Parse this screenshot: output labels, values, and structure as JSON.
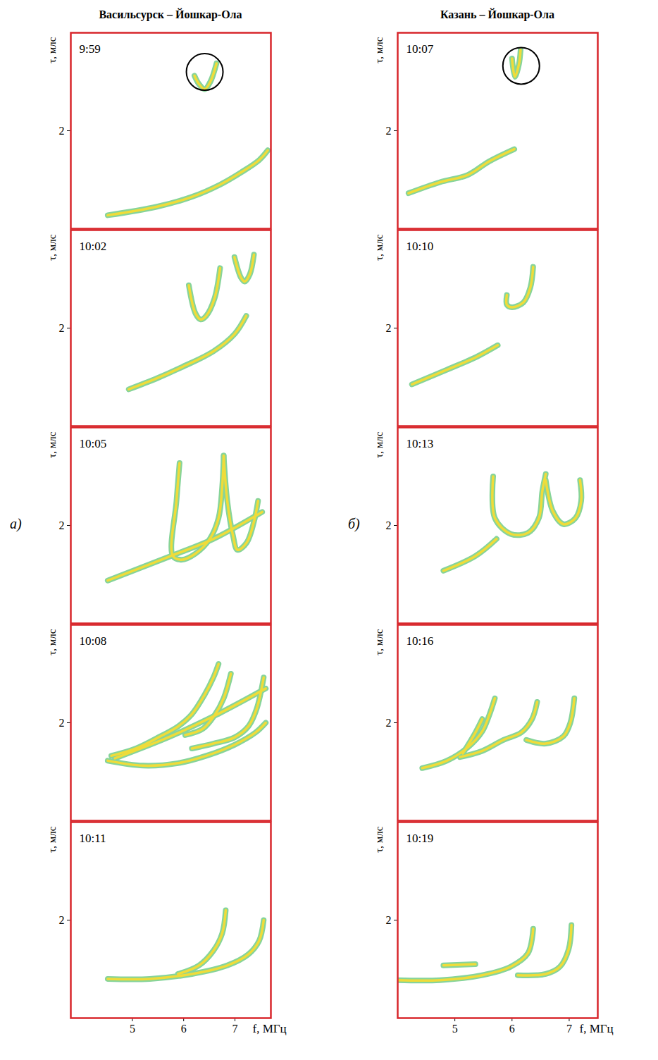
{
  "chart_data": [
    {
      "type": "line",
      "title": "Васильсурск – Йошкар-Ола",
      "panel_label": "а)",
      "xlabel": "f, МГц",
      "ylabel": "τ, млс",
      "xlim": [
        3.8,
        7.7
      ],
      "xticks": [
        5,
        6,
        7
      ],
      "ylim": [
        1.2,
        2.8
      ],
      "yticks": [
        2
      ],
      "color": "#efdc3a",
      "panels": [
        {
          "time": "9:59",
          "traces": [
            {
              "f": [
                4.52,
                5.48,
                6.16,
                6.71,
                7.12,
                7.47,
                7.64
              ],
              "tau": [
                1.31,
                1.38,
                1.46,
                1.56,
                1.66,
                1.76,
                1.84
              ]
            },
            {
              "f": [
                6.21,
                6.3,
                6.41,
                6.52,
                6.64
              ],
              "tau": [
                2.45,
                2.38,
                2.34,
                2.4,
                2.55
              ]
            }
          ],
          "marked": {
            "f": 6.41,
            "tau": 2.48
          }
        },
        {
          "time": "10:02",
          "traces": [
            {
              "f": [
                4.93,
                5.48,
                5.96,
                6.58,
                6.99,
                7.22
              ],
              "tau": [
                1.5,
                1.59,
                1.68,
                1.81,
                1.95,
                2.1
              ]
            },
            {
              "f": [
                6.1,
                6.23,
                6.33,
                6.44,
                6.6,
                6.71
              ],
              "tau": [
                2.35,
                2.12,
                2.07,
                2.1,
                2.24,
                2.49
              ]
            },
            {
              "f": [
                6.99,
                7.12,
                7.19,
                7.29,
                7.37
              ],
              "tau": [
                2.58,
                2.41,
                2.38,
                2.44,
                2.6
              ]
            }
          ]
        },
        {
          "time": "10:05",
          "traces": [
            {
              "f": [
                4.52,
                5.75,
                6.58,
                7.53
              ],
              "tau": [
                1.55,
                1.75,
                1.89,
                2.11
              ]
            },
            {
              "f": [
                5.92,
                5.86,
                5.79,
                5.96,
                6.23,
                6.51,
                6.68,
                6.75,
                6.78
              ],
              "tau": [
                2.51,
                2.2,
                1.75,
                1.72,
                1.77,
                1.89,
                2.06,
                2.31,
                2.57
              ]
            },
            {
              "f": [
                6.78,
                6.85,
                6.96,
                7.05,
                7.23,
                7.37,
                7.45
              ],
              "tau": [
                2.57,
                2.2,
                1.92,
                1.8,
                1.86,
                2.03,
                2.2
              ]
            }
          ]
        },
        {
          "time": "10:08",
          "traces": [
            {
              "f": [
                4.66,
                5.75,
                6.71,
                7.6
              ],
              "tau": [
                1.71,
                1.89,
                2.08,
                2.28
              ]
            },
            {
              "f": [
                4.52,
                5.21,
                5.89,
                6.44,
                6.99,
                7.4,
                7.6
              ],
              "tau": [
                1.69,
                1.65,
                1.67,
                1.73,
                1.82,
                1.92,
                2.0
              ]
            },
            {
              "f": [
                4.59,
                5.07,
                5.55,
                5.89,
                6.16,
                6.41,
                6.58,
                6.68
              ],
              "tau": [
                1.73,
                1.79,
                1.89,
                1.97,
                2.07,
                2.23,
                2.37,
                2.48
              ]
            },
            {
              "f": [
                6.03,
                6.37,
                6.6,
                6.78,
                6.92
              ],
              "tau": [
                1.9,
                1.95,
                2.06,
                2.2,
                2.4
              ]
            },
            {
              "f": [
                6.16,
                6.58,
                6.99,
                7.26,
                7.42,
                7.56
              ],
              "tau": [
                1.79,
                1.83,
                1.88,
                1.97,
                2.11,
                2.37
              ]
            }
          ]
        },
        {
          "time": "10:11",
          "traces": [
            {
              "f": [
                4.52,
                5.34,
                6.16,
                6.85,
                7.26,
                7.47,
                7.56
              ],
              "tau": [
                1.52,
                1.52,
                1.56,
                1.63,
                1.72,
                1.83,
                2.0
              ]
            },
            {
              "f": [
                5.89,
                6.3,
                6.58,
                6.75,
                6.82
              ],
              "tau": [
                1.56,
                1.63,
                1.75,
                1.89,
                2.08
              ]
            }
          ]
        }
      ]
    },
    {
      "type": "line",
      "title": "Казань – Йошкар-Ола",
      "panel_label": "б)",
      "xlabel": "f, МГц",
      "ylabel": "τ, млс",
      "xlim": [
        4.0,
        7.5
      ],
      "xticks": [
        5,
        6,
        7
      ],
      "ylim": [
        1.2,
        2.8
      ],
      "yticks": [
        2
      ],
      "color": "#efdc3a",
      "panels": [
        {
          "time": "10:07",
          "traces": [
            {
              "f": [
                4.19,
                4.74,
                5.23,
                5.6,
                6.04
              ],
              "tau": [
                1.49,
                1.58,
                1.64,
                1.75,
                1.85
              ]
            },
            {
              "f": [
                6.0,
                6.05,
                6.12,
                6.15
              ],
              "tau": [
                2.59,
                2.44,
                2.54,
                2.66
              ]
            }
          ],
          "marked": {
            "f": 6.16,
            "tau": 2.53
          }
        },
        {
          "time": "10:10",
          "traces": [
            {
              "f": [
                4.25,
                4.86,
                5.36,
                5.75
              ],
              "tau": [
                1.54,
                1.66,
                1.76,
                1.86
              ]
            },
            {
              "f": [
                5.91,
                5.91,
                6.0,
                6.2,
                6.32,
                6.37
              ],
              "tau": [
                2.27,
                2.19,
                2.17,
                2.21,
                2.33,
                2.5
              ]
            }
          ]
        },
        {
          "time": "10:13",
          "traces": [
            {
              "f": [
                4.8,
                5.36,
                5.73
              ],
              "tau": [
                1.63,
                1.75,
                1.89
              ]
            },
            {
              "f": [
                5.67,
                5.7,
                5.98,
                6.28,
                6.47,
                6.53,
                6.59
              ],
              "tau": [
                2.4,
                2.06,
                1.93,
                1.94,
                2.06,
                2.28,
                2.42
              ]
            },
            {
              "f": [
                6.59,
                6.72,
                6.9,
                7.11,
                7.21,
                7.19
              ],
              "tau": [
                2.37,
                2.11,
                2.01,
                2.06,
                2.2,
                2.37
              ]
            }
          ]
        },
        {
          "time": "10:16",
          "traces": [
            {
              "f": [
                4.43,
                4.86,
                5.23,
                5.48,
                5.6,
                5.7
              ],
              "tau": [
                1.63,
                1.69,
                1.8,
                1.93,
                2.06,
                2.2
              ]
            },
            {
              "f": [
                5.09,
                5.48,
                5.85,
                6.16,
                6.35,
                6.44
              ],
              "tau": [
                1.72,
                1.77,
                1.86,
                1.92,
                2.03,
                2.17
              ]
            },
            {
              "f": [
                6.25,
                6.59,
                6.9,
                7.02,
                7.09
              ],
              "tau": [
                1.86,
                1.83,
                1.89,
                2.0,
                2.2
              ]
            },
            {
              "f": [
                5.14,
                5.36,
                5.48
              ],
              "tau": [
                1.75,
                1.92,
                2.03
              ]
            }
          ]
        },
        {
          "time": "10:19",
          "traces": [
            {
              "f": [
                4.0,
                4.74,
                5.48,
                5.98,
                6.28,
                6.37
              ],
              "tau": [
                1.51,
                1.51,
                1.55,
                1.62,
                1.73,
                1.93
              ]
            },
            {
              "f": [
                6.1,
                6.59,
                6.84,
                6.99,
                7.04
              ],
              "tau": [
                1.55,
                1.56,
                1.62,
                1.76,
                1.96
              ]
            },
            {
              "f": [
                4.8,
                5.36
              ],
              "tau": [
                1.63,
                1.64
              ]
            }
          ]
        }
      ]
    }
  ]
}
